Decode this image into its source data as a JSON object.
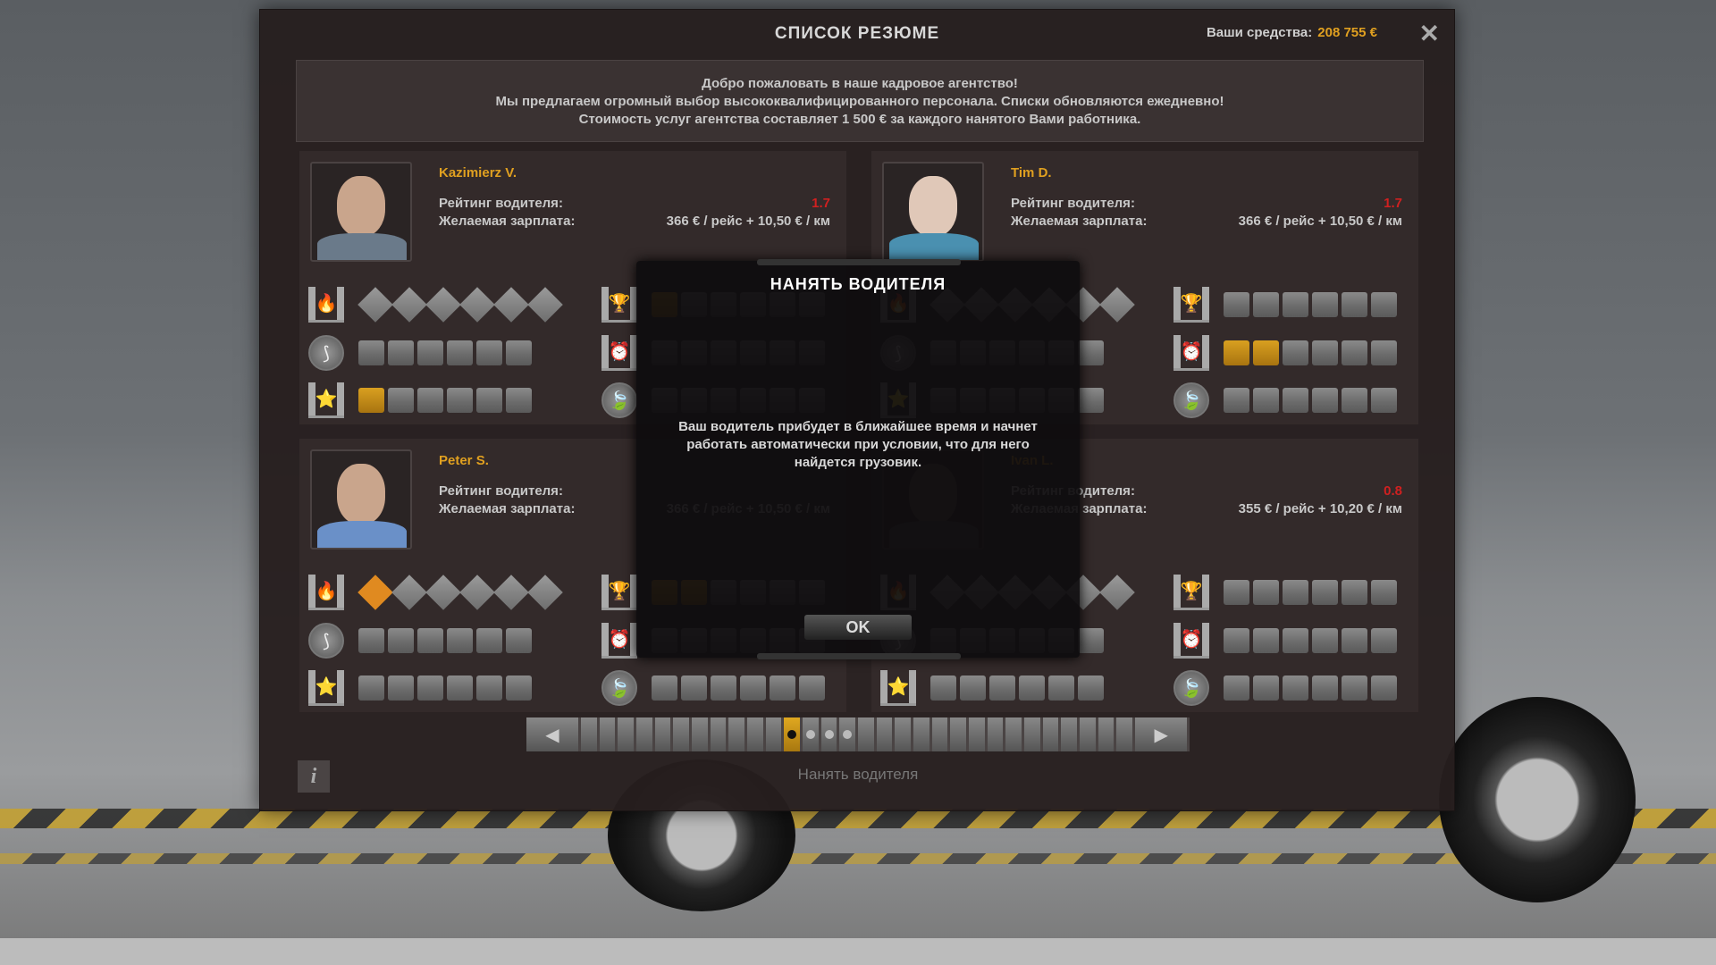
{
  "window": {
    "title": "СПИСОК РЕЗЮМЕ",
    "funds_label": "Ваши средства:",
    "funds_value": "208 755 €",
    "close_icon": "close-icon"
  },
  "info_lines": [
    "Добро пожаловать в наше кадровое агентство!",
    "Мы предлагаем огромный выбор высококвалифицированного персонала. Списки обновляются ежедневно!",
    "Стоимость услуг агентства составляет 1 500 € за каждого нанятого Вами работника."
  ],
  "labels": {
    "rating": "Рейтинг водителя:",
    "salary": "Желаемая зарплата:"
  },
  "colors": {
    "accent": "#e0a020",
    "rating_low": "#d02020"
  },
  "drivers": [
    {
      "name": "Kazimierz V.",
      "rating": "1.7",
      "salary": "366 € / рейс + 10,50 € / км",
      "adr": [
        0,
        0,
        0,
        0,
        0,
        0
      ],
      "long": 0,
      "high_value": 1,
      "fragile": 1,
      "urgent": 0,
      "eco": 0
    },
    {
      "name": "Tim D.",
      "rating": "1.7",
      "salary": "366 € / рейс + 10,50 € / км",
      "adr": [
        0,
        0,
        0,
        0,
        0,
        0
      ],
      "long": 0,
      "high_value": 0,
      "fragile": 0,
      "urgent": 2,
      "eco": 0
    },
    {
      "name": "Peter S.",
      "rating": "",
      "salary": "366 € / рейс + 10,50 € / км",
      "adr": [
        1,
        0,
        0,
        0,
        0,
        0
      ],
      "long": 0,
      "high_value": 0,
      "fragile": 2,
      "urgent": 0,
      "eco": 0
    },
    {
      "name": "Ivan L.",
      "rating": "0.8",
      "salary": "355 € / рейс + 10,20 € / км",
      "adr": [
        0,
        0,
        0,
        0,
        0,
        0
      ],
      "long": 0,
      "high_value": 0,
      "fragile": 0,
      "urgent": 0,
      "eco": 0
    }
  ],
  "modal": {
    "title": "НАНЯТЬ ВОДИТЕЛЯ",
    "message": "Ваш водитель прибудет в ближайшее время и начнет работать автоматически при условии, что для него найдется грузовик.",
    "ok": "OK"
  },
  "pager": {
    "total": 30,
    "active": 11,
    "dots": [
      12,
      13,
      14
    ]
  },
  "hire_button": "Нанять водителя",
  "info_button": "i"
}
